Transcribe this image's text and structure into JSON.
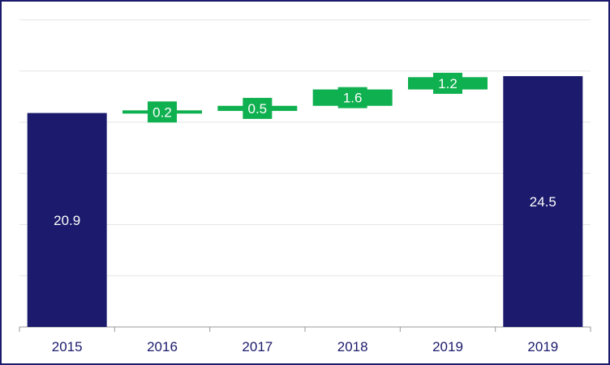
{
  "chart_data": {
    "type": "waterfall",
    "title": "",
    "xlabel": "",
    "ylabel": "",
    "categories": [
      "2015",
      "2016",
      "2017",
      "2018",
      "2019",
      "2019"
    ],
    "values": [
      20.9,
      0.2,
      0.5,
      1.6,
      1.2,
      24.5
    ],
    "kinds": [
      "total",
      "delta",
      "delta",
      "delta",
      "delta",
      "total"
    ],
    "ylim": [
      0,
      30
    ],
    "grid": true,
    "legend": "none",
    "colors": {
      "total": "#1b1a6c",
      "increase": "#0fb04f",
      "grid": "#e6e6e6",
      "axis": "#9a9a9a",
      "text": "#1b1a6c"
    }
  }
}
